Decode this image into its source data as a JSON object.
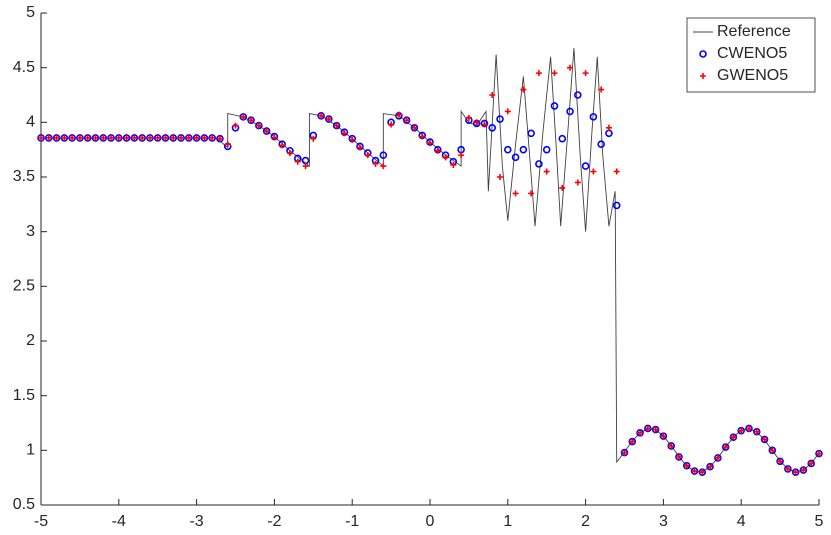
{
  "chart_data": {
    "type": "line",
    "xlim": [
      -5,
      5
    ],
    "xticks": [
      -5,
      -4,
      -3,
      -2,
      -1,
      0,
      1,
      2,
      3,
      4,
      5
    ],
    "ylim": [
      0.5,
      5
    ],
    "yticks": [
      0.5,
      1,
      1.5,
      2,
      2.5,
      3,
      3.5,
      4,
      4.5,
      5
    ],
    "legend": "upper-right",
    "x": [
      -5,
      -4.9,
      -4.8,
      -4.7,
      -4.6,
      -4.5,
      -4.4,
      -4.3,
      -4.2,
      -4.1,
      -4,
      -3.9,
      -3.8,
      -3.7,
      -3.6,
      -3.5,
      -3.4,
      -3.3,
      -3.2,
      -3.1,
      -3,
      -2.9,
      -2.8,
      -2.7,
      -2.6,
      -2.5,
      -2.4,
      -2.3,
      -2.2,
      -2.1,
      -2,
      -1.9,
      -1.8,
      -1.7,
      -1.6,
      -1.5,
      -1.4,
      -1.3,
      -1.2,
      -1.1,
      -1,
      -0.9,
      -0.8,
      -0.7,
      -0.6,
      -0.5,
      -0.4,
      -0.3,
      -0.2,
      -0.1,
      0,
      0.1,
      0.2,
      0.3,
      0.4,
      0.5,
      0.6,
      0.7,
      0.8,
      0.9,
      1,
      1.1,
      1.2,
      1.3,
      1.4,
      1.5,
      1.6,
      1.7,
      1.8,
      1.9,
      2,
      2.1,
      2.2,
      2.3,
      2.4,
      2.5,
      2.6,
      2.7,
      2.8,
      2.9,
      3,
      3.1,
      3.2,
      3.3,
      3.4,
      3.5,
      3.6,
      3.7,
      3.8,
      3.9,
      4,
      4.1,
      4.2,
      4.3,
      4.4,
      4.5,
      4.6,
      4.7,
      4.8,
      4.9,
      5
    ],
    "series": [
      {
        "name": "Reference",
        "color": "#404040",
        "style": "line",
        "x": [
          -5,
          -2.75,
          -2.6,
          -2.6,
          -2.4,
          -2.2,
          -2,
          -1.8,
          -1.55,
          -1.55,
          -1.4,
          -1.2,
          -1,
          -0.8,
          -0.6,
          -0.6,
          -0.4,
          -0.2,
          0,
          0.2,
          0.4,
          0.4,
          0.5,
          0.6,
          0.72,
          0.75,
          0.85,
          0.93,
          1,
          1.1,
          1.2,
          1.28,
          1.35,
          1.45,
          1.55,
          1.62,
          1.68,
          1.77,
          1.85,
          1.93,
          2,
          2.08,
          2.15,
          2.22,
          2.3,
          2.38,
          2.4,
          2.5,
          2.6,
          2.7,
          2.8,
          2.9,
          3,
          3.1,
          3.2,
          3.3,
          3.4,
          3.5,
          3.6,
          3.7,
          3.8,
          3.9,
          4,
          4.1,
          4.2,
          4.3,
          4.4,
          4.5,
          4.6,
          4.7,
          4.8,
          4.9,
          5
        ],
        "values": [
          3.857,
          3.857,
          3.77,
          4.08,
          4.05,
          3.97,
          3.87,
          3.74,
          3.6,
          4.08,
          4.06,
          3.97,
          3.85,
          3.72,
          3.6,
          4.08,
          4.06,
          3.95,
          3.82,
          3.7,
          3.6,
          4.1,
          4,
          3.97,
          4.1,
          3.37,
          4.62,
          3.6,
          3.1,
          3.8,
          4.42,
          3.7,
          3.05,
          3.9,
          4.6,
          3.8,
          3.05,
          3.9,
          4.68,
          3.7,
          3,
          3.9,
          4.6,
          3.7,
          3.05,
          3.37,
          0.893,
          0.987,
          1.084,
          1.161,
          1.198,
          1.187,
          1.13,
          1.043,
          0.942,
          0.858,
          0.808,
          0.804,
          0.85,
          0.932,
          1.03,
          1.121,
          1.183,
          1.199,
          1.167,
          1.095,
          0.998,
          0.903,
          0.831,
          0.8,
          0.819,
          0.882,
          0.974
        ]
      },
      {
        "name": "CWENO5",
        "color": "#0000ff",
        "style": "marker",
        "marker": "circle",
        "values": [
          3.857,
          3.857,
          3.857,
          3.857,
          3.857,
          3.857,
          3.857,
          3.857,
          3.857,
          3.857,
          3.857,
          3.857,
          3.857,
          3.857,
          3.857,
          3.857,
          3.857,
          3.857,
          3.857,
          3.857,
          3.857,
          3.857,
          3.857,
          3.85,
          3.78,
          3.95,
          4.05,
          4.02,
          3.97,
          3.92,
          3.87,
          3.8,
          3.74,
          3.67,
          3.65,
          3.88,
          4.06,
          4.03,
          3.97,
          3.91,
          3.85,
          3.78,
          3.72,
          3.65,
          3.7,
          4,
          4.06,
          4.02,
          3.95,
          3.88,
          3.82,
          3.75,
          3.7,
          3.64,
          3.75,
          4.02,
          3.99,
          3.99,
          3.95,
          4.03,
          3.75,
          3.68,
          3.75,
          3.9,
          3.62,
          3.75,
          4.15,
          3.85,
          4.1,
          4.25,
          3.6,
          4.05,
          3.8,
          3.9,
          3.24,
          0.98,
          1.08,
          1.16,
          1.2,
          1.19,
          1.13,
          1.04,
          0.94,
          0.86,
          0.81,
          0.8,
          0.85,
          0.93,
          1.03,
          1.12,
          1.18,
          1.2,
          1.17,
          1.1,
          1,
          0.9,
          0.83,
          0.8,
          0.82,
          0.88,
          0.97
        ]
      },
      {
        "name": "GWENO5",
        "color": "#ff0000",
        "style": "marker",
        "marker": "plus",
        "values": [
          3.857,
          3.857,
          3.857,
          3.857,
          3.857,
          3.857,
          3.857,
          3.857,
          3.857,
          3.857,
          3.857,
          3.857,
          3.857,
          3.857,
          3.857,
          3.857,
          3.857,
          3.857,
          3.857,
          3.857,
          3.857,
          3.857,
          3.857,
          3.85,
          3.8,
          3.97,
          4.05,
          4.02,
          3.97,
          3.92,
          3.86,
          3.79,
          3.72,
          3.64,
          3.6,
          3.85,
          4.06,
          4.03,
          3.97,
          3.9,
          3.84,
          3.77,
          3.7,
          3.62,
          3.6,
          3.98,
          4.07,
          4.02,
          3.95,
          3.87,
          3.81,
          3.74,
          3.68,
          3.61,
          3.7,
          4.04,
          4,
          3.98,
          4.25,
          3.5,
          4.1,
          3.35,
          4.3,
          3.35,
          4.45,
          3.55,
          4.45,
          3.4,
          4.5,
          3.45,
          4.45,
          3.55,
          4.3,
          3.95,
          3.55,
          0.98,
          1.08,
          1.16,
          1.2,
          1.19,
          1.13,
          1.04,
          0.94,
          0.86,
          0.81,
          0.8,
          0.85,
          0.93,
          1.03,
          1.12,
          1.18,
          1.2,
          1.17,
          1.1,
          1,
          0.9,
          0.83,
          0.8,
          0.82,
          0.88,
          0.97
        ]
      }
    ]
  }
}
